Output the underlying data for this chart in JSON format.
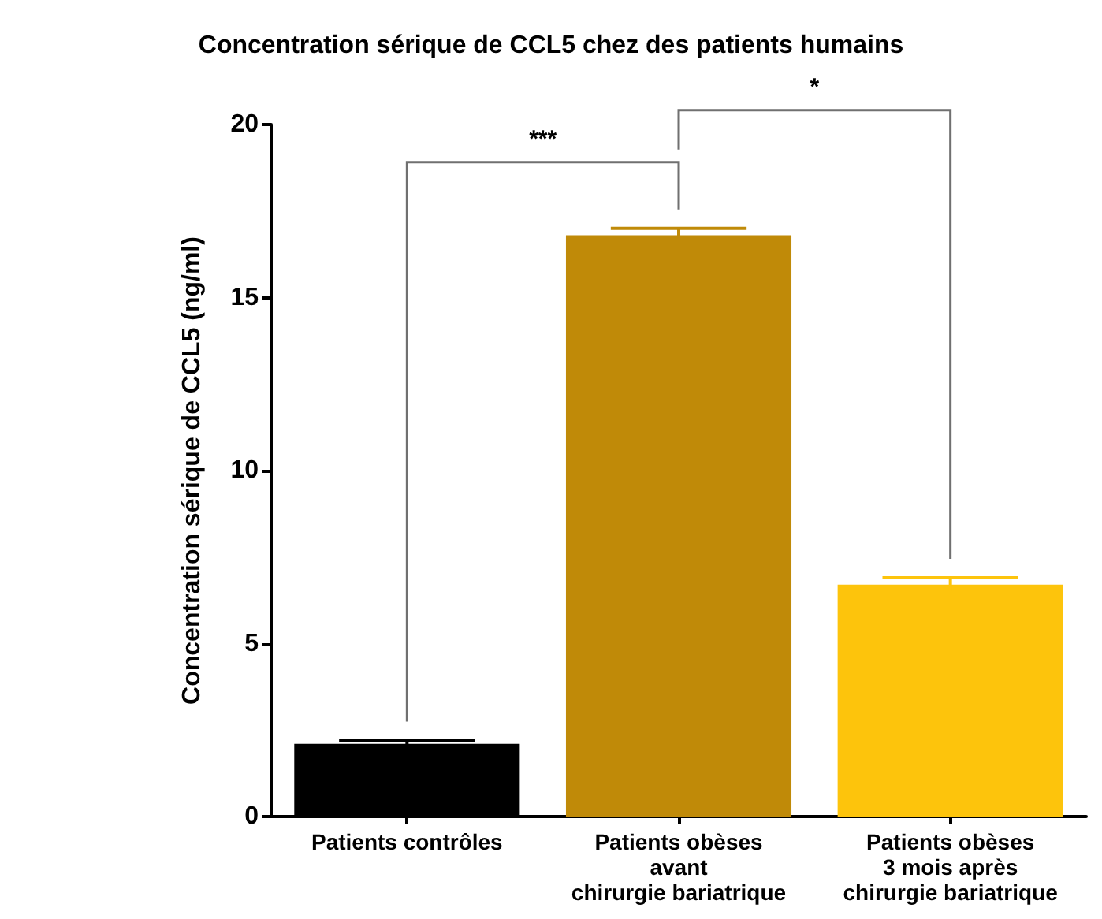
{
  "chart_data": {
    "type": "bar",
    "title": "Concentration sérique de CCL5 chez des patients humains",
    "ylabel": "Concentration sérique de CCL5 (ng/ml)",
    "categories": [
      "Patients contrôles",
      "Patients obèses\navant\nchirurgie bariatrique",
      "Patients obèses\n3 mois après\nchirurgie bariatrique"
    ],
    "values": [
      2.1,
      16.8,
      6.7
    ],
    "errors": [
      0.1,
      0.2,
      0.2
    ],
    "colors": [
      "#000000",
      "#c08a08",
      "#fdc40c"
    ],
    "ylim": [
      0,
      20
    ],
    "yticks": [
      0,
      5,
      10,
      15,
      20
    ],
    "grid": false,
    "annotations": [
      "***",
      "*"
    ]
  }
}
